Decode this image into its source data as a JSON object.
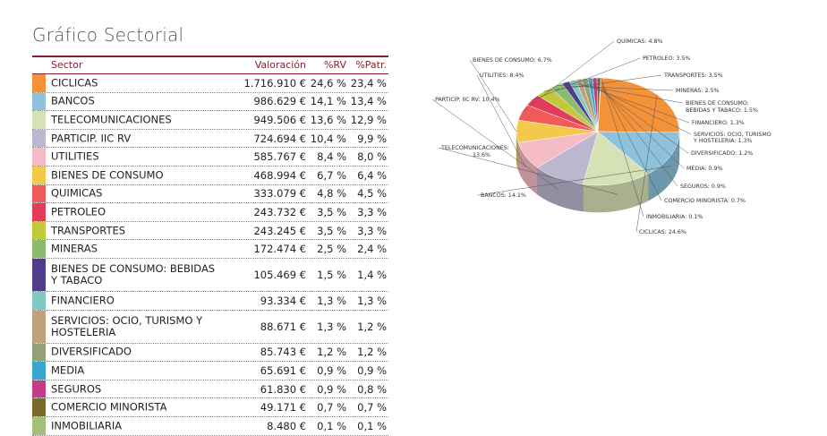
{
  "title": "Gráfico Sectorial",
  "headers": {
    "sector": "Sector",
    "valoracion": "Valoración",
    "rv": "%RV",
    "patr": "%Patr."
  },
  "chart_data": {
    "type": "pie",
    "categories": [
      "CICLICAS",
      "BANCOS",
      "TELECOMUNICACIONES",
      "PARTICIP. IIC RV",
      "UTILITIES",
      "BIENES DE CONSUMO",
      "QUIMICAS",
      "PETROLEO",
      "TRANSPORTES",
      "MINERAS",
      "BIENES DE CONSUMO: BEBIDAS Y TABACO",
      "FINANCIERO",
      "SERVICIOS: OCIO, TURISMO Y HOSTELERIA",
      "DIVERSIFICADO",
      "MEDIA",
      "SEGUROS",
      "COMERCIO MINORISTA",
      "INMOBILIARIA"
    ],
    "values": [
      24.6,
      14.1,
      13.6,
      10.4,
      8.4,
      6.7,
      4.8,
      3.5,
      3.5,
      2.5,
      1.5,
      1.3,
      1.3,
      1.2,
      0.9,
      0.9,
      0.7,
      0.1
    ],
    "colors": [
      "#f4923a",
      "#8dc1dc",
      "#d7e1b6",
      "#bcb6cf",
      "#f6bcc6",
      "#f2c94a",
      "#ef5b58",
      "#e33b5a",
      "#c2c93e",
      "#8bbb6c",
      "#4f3e8c",
      "#7fcbc0",
      "#bfa27d",
      "#93a177",
      "#3aa5cd",
      "#c23c87",
      "#7a6a2a",
      "#9fc17a"
    ]
  },
  "rows": [
    {
      "sector": "CICLICAS",
      "valor": "1.716.910 €",
      "rv": "24,6 %",
      "patr": "23,4 %",
      "color": "#f4923a",
      "label": "CICLICAS: 24.6%"
    },
    {
      "sector": "BANCOS",
      "valor": "986.629 €",
      "rv": "14,1 %",
      "patr": "13,4 %",
      "color": "#8dc1dc",
      "label": "BANCOS: 14.1%"
    },
    {
      "sector": "TELECOMUNICACIONES",
      "valor": "949.506 €",
      "rv": "13,6 %",
      "patr": "12,9 %",
      "color": "#d7e1b6",
      "label": "TELECOMUNICACIONES:",
      "label2": "13.6%"
    },
    {
      "sector": "PARTICIP. IIC RV",
      "valor": "724.694 €",
      "rv": "10,4 %",
      "patr": "9,9 %",
      "color": "#bcb6cf",
      "label": "PARTICIP. IIC RV: 10.4%"
    },
    {
      "sector": "UTILITIES",
      "valor": "585.767 €",
      "rv": "8,4 %",
      "patr": "8,0 %",
      "color": "#f6bcc6",
      "label": "UTILITIES: 8.4%"
    },
    {
      "sector": "BIENES DE CONSUMO",
      "valor": "468.994 €",
      "rv": "6,7 %",
      "patr": "6,4 %",
      "color": "#f2c94a",
      "label": "BIENES DE CONSUMO: 6.7%"
    },
    {
      "sector": "QUIMICAS",
      "valor": "333.079 €",
      "rv": "4,8 %",
      "patr": "4,5 %",
      "color": "#ef5b58",
      "label": "QUIMICAS: 4.8%"
    },
    {
      "sector": "PETROLEO",
      "valor": "243.732 €",
      "rv": "3,5 %",
      "patr": "3,3 %",
      "color": "#e33b5a",
      "label": "PETROLEO: 3.5%"
    },
    {
      "sector": "TRANSPORTES",
      "valor": "243.245 €",
      "rv": "3,5 %",
      "patr": "3,3 %",
      "color": "#c2c93e",
      "label": "TRANSPORTES: 3.5%"
    },
    {
      "sector": "MINERAS",
      "valor": "172.474 €",
      "rv": "2,5 %",
      "patr": "2,4 %",
      "color": "#8bbb6c",
      "label": "MINERAS: 2.5%"
    },
    {
      "sector": "BIENES DE CONSUMO: BEBIDAS Y TABACO",
      "valor": "105.469 €",
      "rv": "1,5 %",
      "patr": "1,4 %",
      "color": "#4f3e8c",
      "label": "BIENES DE CONSUMO:",
      "label2": "BEBIDAS Y TABACO: 1.5%"
    },
    {
      "sector": "FINANCIERO",
      "valor": "93.334 €",
      "rv": "1,3 %",
      "patr": "1,3 %",
      "color": "#7fcbc0",
      "label": "FINANCIERO: 1.3%"
    },
    {
      "sector": "SERVICIOS: OCIO, TURISMO Y HOSTELERIA",
      "valor": "88.671 €",
      "rv": "1,3 %",
      "patr": "1,2 %",
      "color": "#bfa27d",
      "label": "SERVICIOS: OCIO, TURISMO",
      "label2": "Y HOSTELERIA: 1.3%"
    },
    {
      "sector": "DIVERSIFICADO",
      "valor": "85.743 €",
      "rv": "1,2 %",
      "patr": "1,2 %",
      "color": "#93a177",
      "label": "DIVERSIFICADO: 1.2%"
    },
    {
      "sector": "MEDIA",
      "valor": "65.691 €",
      "rv": "0,9 %",
      "patr": "0,9 %",
      "color": "#3aa5cd",
      "label": "MEDIA: 0.9%"
    },
    {
      "sector": "SEGUROS",
      "valor": "61.830 €",
      "rv": "0,9 %",
      "patr": "0,8 %",
      "color": "#c23c87",
      "label": "SEGUROS: 0.9%"
    },
    {
      "sector": "COMERCIO MINORISTA",
      "valor": "49.171 €",
      "rv": "0,7 %",
      "patr": "0,7 %",
      "color": "#7a6a2a",
      "label": "COMERCIO MINORISTA: 0.7%"
    },
    {
      "sector": "INMOBILIARIA",
      "valor": "8.480 €",
      "rv": "0,1 %",
      "patr": "0,1 %",
      "color": "#9fc17a",
      "label": "INMOBILIARIA: 0.1%"
    }
  ]
}
